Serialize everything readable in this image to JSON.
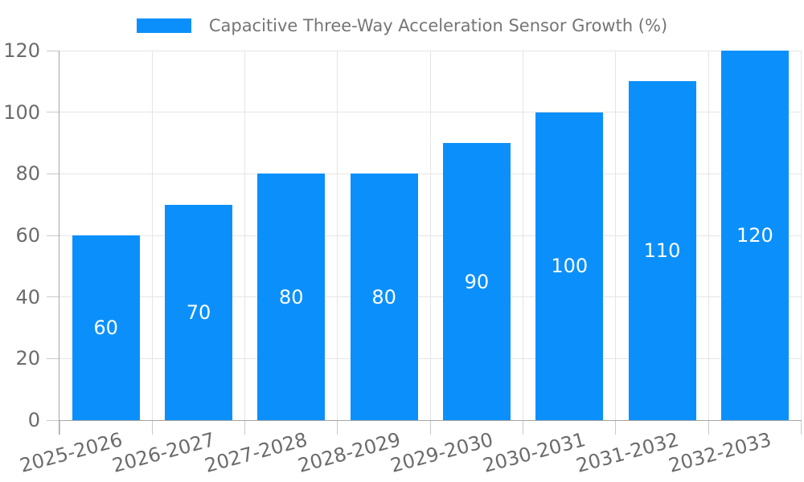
{
  "chart": {
    "legend": {
      "label": "Capacitive Three-Way Acceleration Sensor Growth (%)"
    },
    "colors": {
      "bar": "#0b90fb",
      "value_label": "#ffffff",
      "tick_label": "#6b6b6b",
      "legend_text": "#757575",
      "gridline": "#e5e5e5",
      "tick_mark": "#c9c9c9",
      "spine": "#a6a6a6",
      "background": "#ffffff"
    }
  },
  "chart_data": {
    "type": "bar",
    "title": "",
    "series_name": "Capacitive Three-Way Acceleration Sensor Growth (%)",
    "categories": [
      "2025-2026",
      "2026-2027",
      "2027-2028",
      "2028-2029",
      "2029-2030",
      "2030-2031",
      "2031-2032",
      "2032-2033"
    ],
    "values": [
      60,
      70,
      80,
      80,
      90,
      100,
      110,
      120
    ],
    "xlabel": "",
    "ylabel": "",
    "ylim": [
      0,
      120
    ],
    "yticks": [
      0,
      20,
      40,
      60,
      80,
      100,
      120
    ],
    "grid": true,
    "legend_position": "top-center",
    "value_labels": "inside-center",
    "x_tick_rotation_deg": -15
  }
}
